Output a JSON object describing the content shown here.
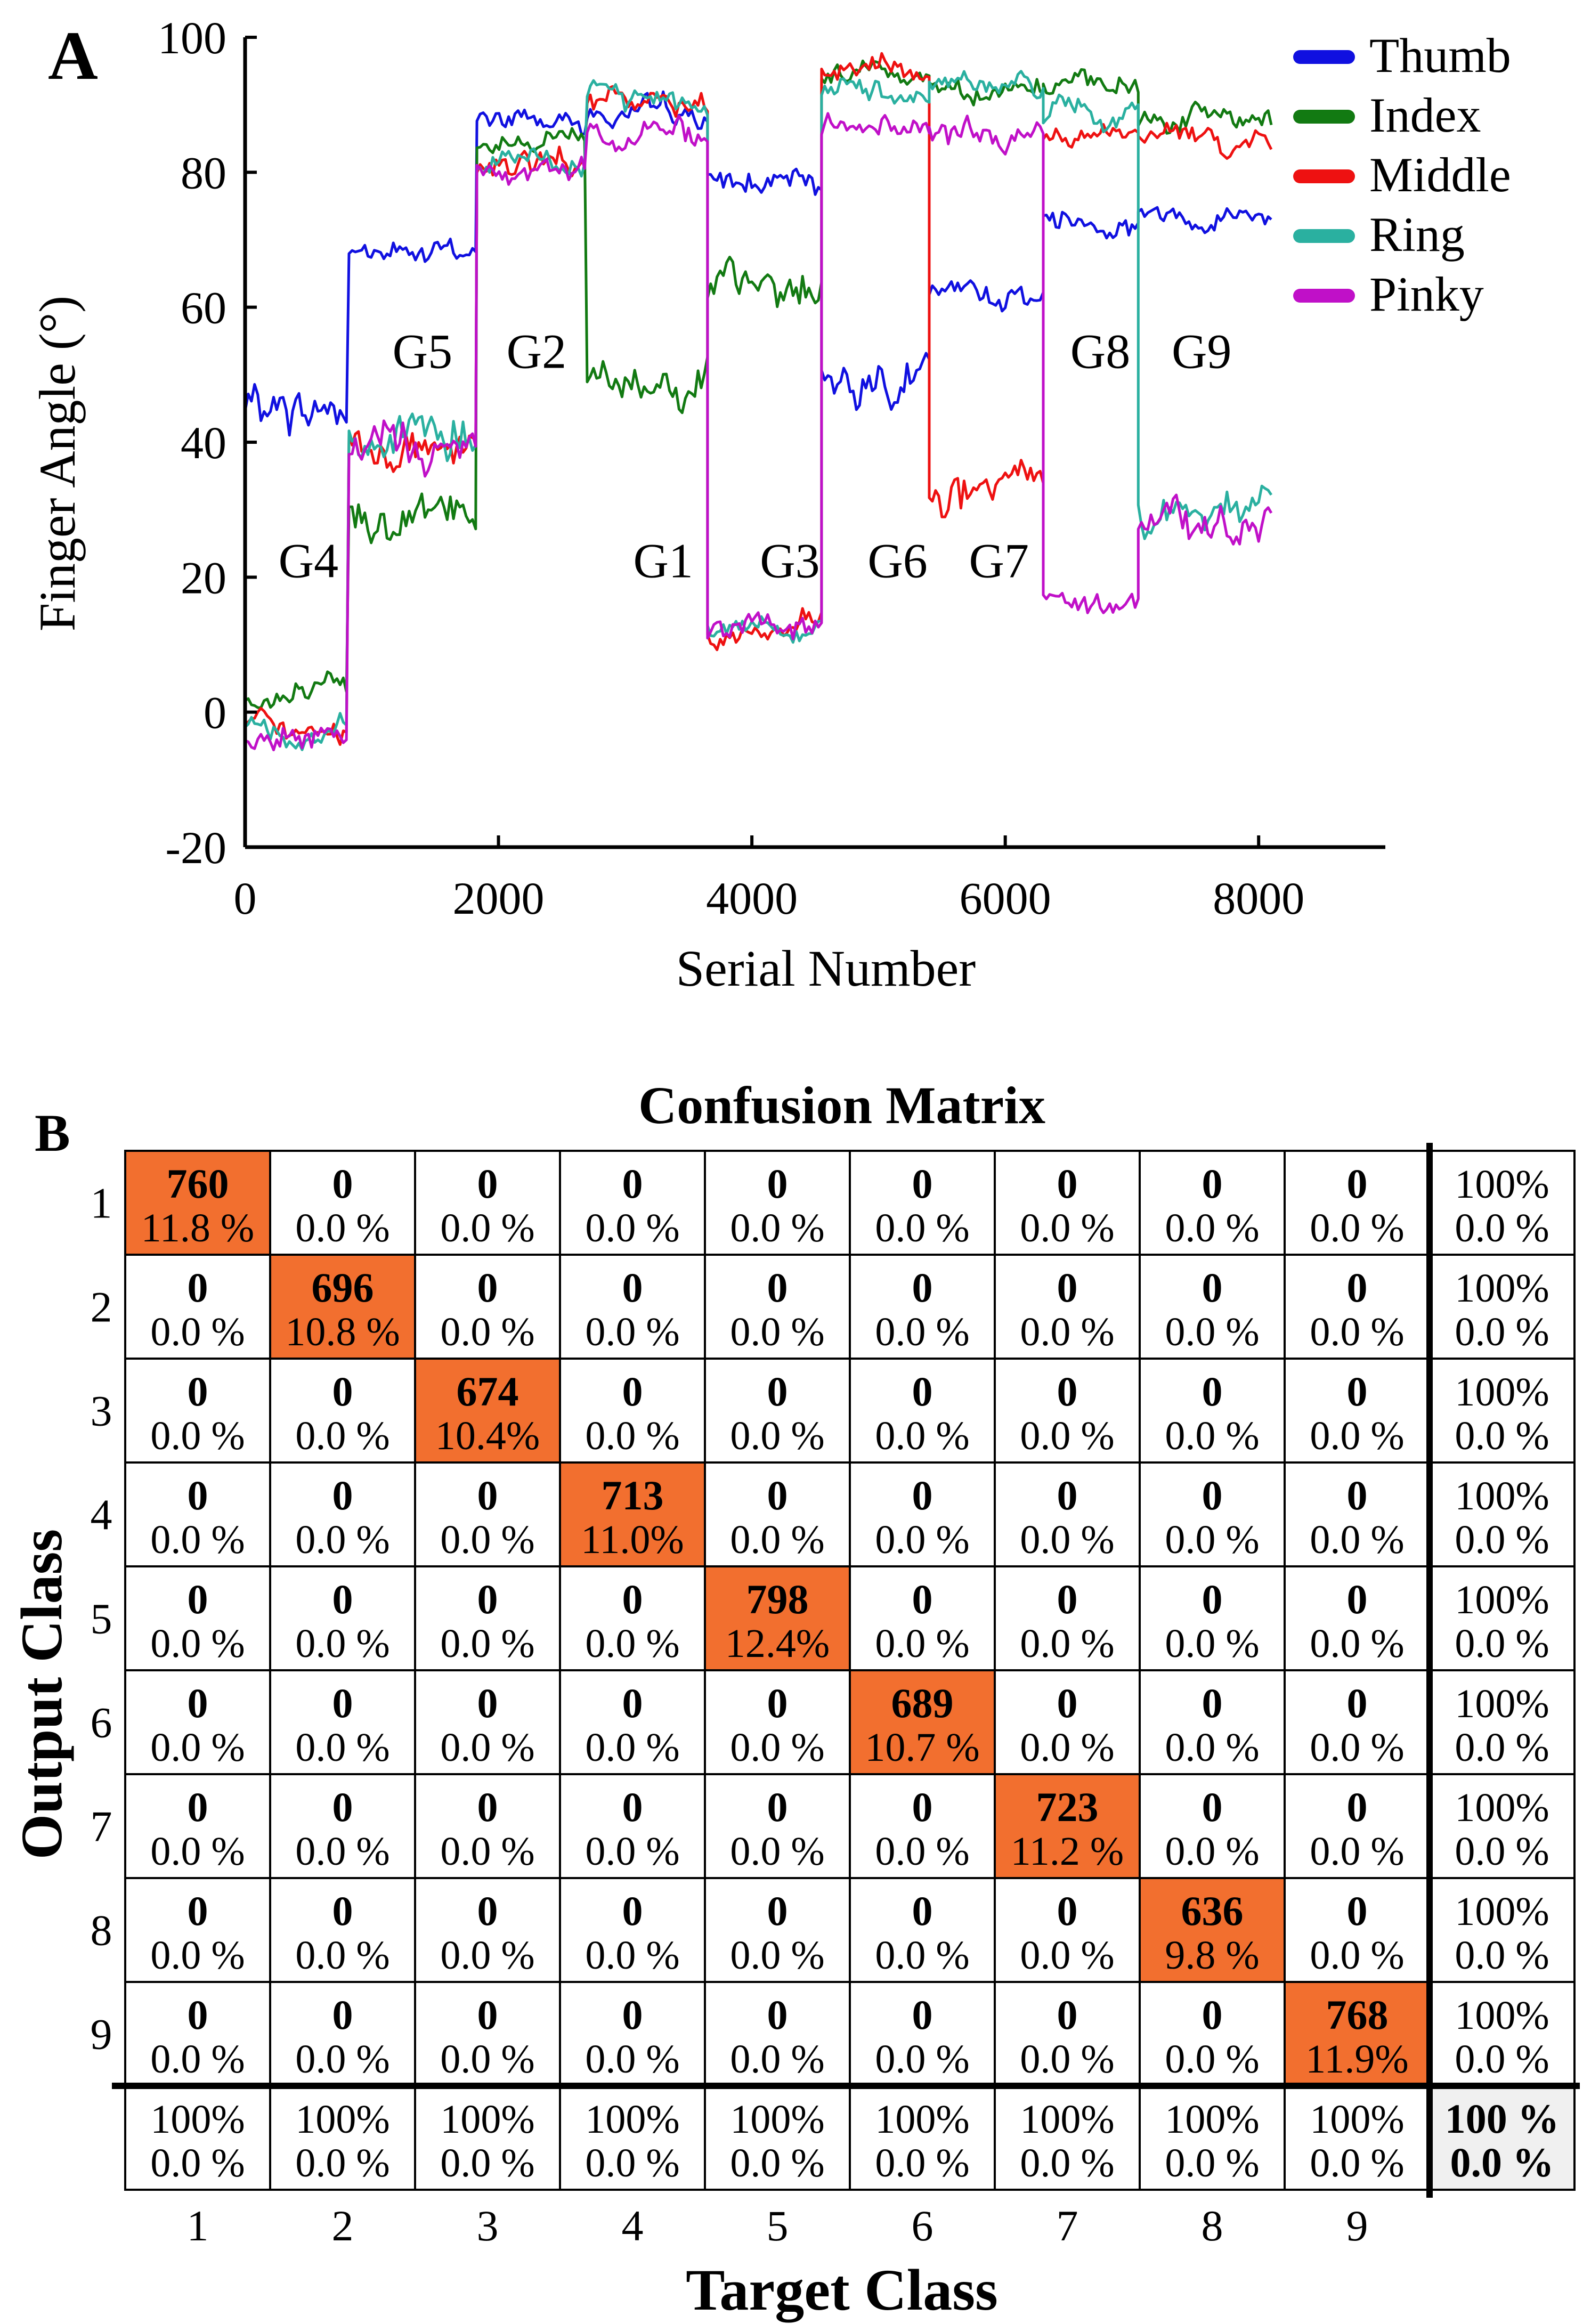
{
  "chart_data": [
    {
      "type": "line",
      "panel_label": "A",
      "title": "",
      "xlabel": "Serial Number",
      "ylabel": "Finger Angle (°)",
      "xlim": [
        0,
        9000
      ],
      "ylim": [
        -20,
        100
      ],
      "xticks": [
        0,
        2000,
        4000,
        6000,
        8000
      ],
      "yticks": [
        -20,
        0,
        20,
        40,
        60,
        80,
        100
      ],
      "xtick_labels": [
        "0",
        "2000",
        "4000",
        "6000",
        "8000"
      ],
      "ytick_labels": [
        "-20",
        "0",
        "20",
        "40",
        "60",
        "80",
        "100"
      ],
      "legend_position": "top-right",
      "segments": [
        {
          "label": "G4",
          "x_start": 0,
          "x_end": 820,
          "label_x": 500,
          "label_y": 20
        },
        {
          "label": "G5",
          "x_start": 820,
          "x_end": 1830,
          "label_x": 1400,
          "label_y": 51
        },
        {
          "label": "G2",
          "x_start": 1830,
          "x_end": 2700,
          "label_x": 2300,
          "label_y": 51
        },
        {
          "label": "G1",
          "x_start": 2700,
          "x_end": 3650,
          "label_x": 3300,
          "label_y": 20
        },
        {
          "label": "G3",
          "x_start": 3650,
          "x_end": 4550,
          "label_x": 4300,
          "label_y": 20
        },
        {
          "label": "G6",
          "x_start": 4550,
          "x_end": 5400,
          "label_x": 5150,
          "label_y": 20
        },
        {
          "label": "G7",
          "x_start": 5400,
          "x_end": 6300,
          "label_x": 5950,
          "label_y": 20
        },
        {
          "label": "G8",
          "x_start": 6300,
          "x_end": 7050,
          "label_x": 6750,
          "label_y": 51
        },
        {
          "label": "G9",
          "x_start": 7050,
          "x_end": 8100,
          "label_x": 7550,
          "label_y": 51
        }
      ],
      "series": [
        {
          "name": "Thumb",
          "color": "#1010e0",
          "levels": [
            45,
            68,
            88,
            88,
            78,
            50,
            62,
            73,
            74
          ]
        },
        {
          "name": "Index",
          "color": "#127a12",
          "levels": [
            2,
            30,
            85,
            50,
            62,
            95,
            93,
            92,
            88
          ]
        },
        {
          "name": "Middle",
          "color": "#ee1111",
          "levels": [
            -3,
            40,
            81,
            90,
            12,
            95,
            32,
            85,
            85
          ]
        },
        {
          "name": "Ring",
          "color": "#2ab0a0",
          "levels": [
            -3,
            41,
            81,
            91,
            13,
            92,
            93,
            88,
            31
          ]
        },
        {
          "name": "Pinky",
          "color": "#c010c8",
          "levels": [
            -4,
            39,
            80,
            86,
            12,
            87,
            85,
            18,
            28
          ]
        }
      ]
    },
    {
      "type": "heatmap",
      "panel_label": "B",
      "title": "Confusion Matrix",
      "xlabel": "Target Class",
      "ylabel": "Output Class",
      "classes": [
        "1",
        "2",
        "3",
        "4",
        "5",
        "6",
        "7",
        "8",
        "9"
      ],
      "cell_zero_count": "0",
      "cell_zero_percent": "0.0 %",
      "diagonal_color": "#f26f2f",
      "summary_color": "#f0f0f0",
      "diagonal": [
        {
          "count": "760",
          "percent": "11.8 %"
        },
        {
          "count": "696",
          "percent": "10.8 %"
        },
        {
          "count": "674",
          "percent": "10.4%"
        },
        {
          "count": "713",
          "percent": "11.0%"
        },
        {
          "count": "798",
          "percent": "12.4%"
        },
        {
          "count": "689",
          "percent": "10.7 %"
        },
        {
          "count": "723",
          "percent": "11.2 %"
        },
        {
          "count": "636",
          "percent": "9.8 %"
        },
        {
          "count": "768",
          "percent": "11.9%"
        }
      ],
      "row_summary": {
        "correct": "100%",
        "error": "0.0 %"
      },
      "column_summary": {
        "correct": "100%",
        "error": "0.0 %"
      },
      "total": {
        "correct": "100 %",
        "error": "0.0 %"
      }
    }
  ]
}
